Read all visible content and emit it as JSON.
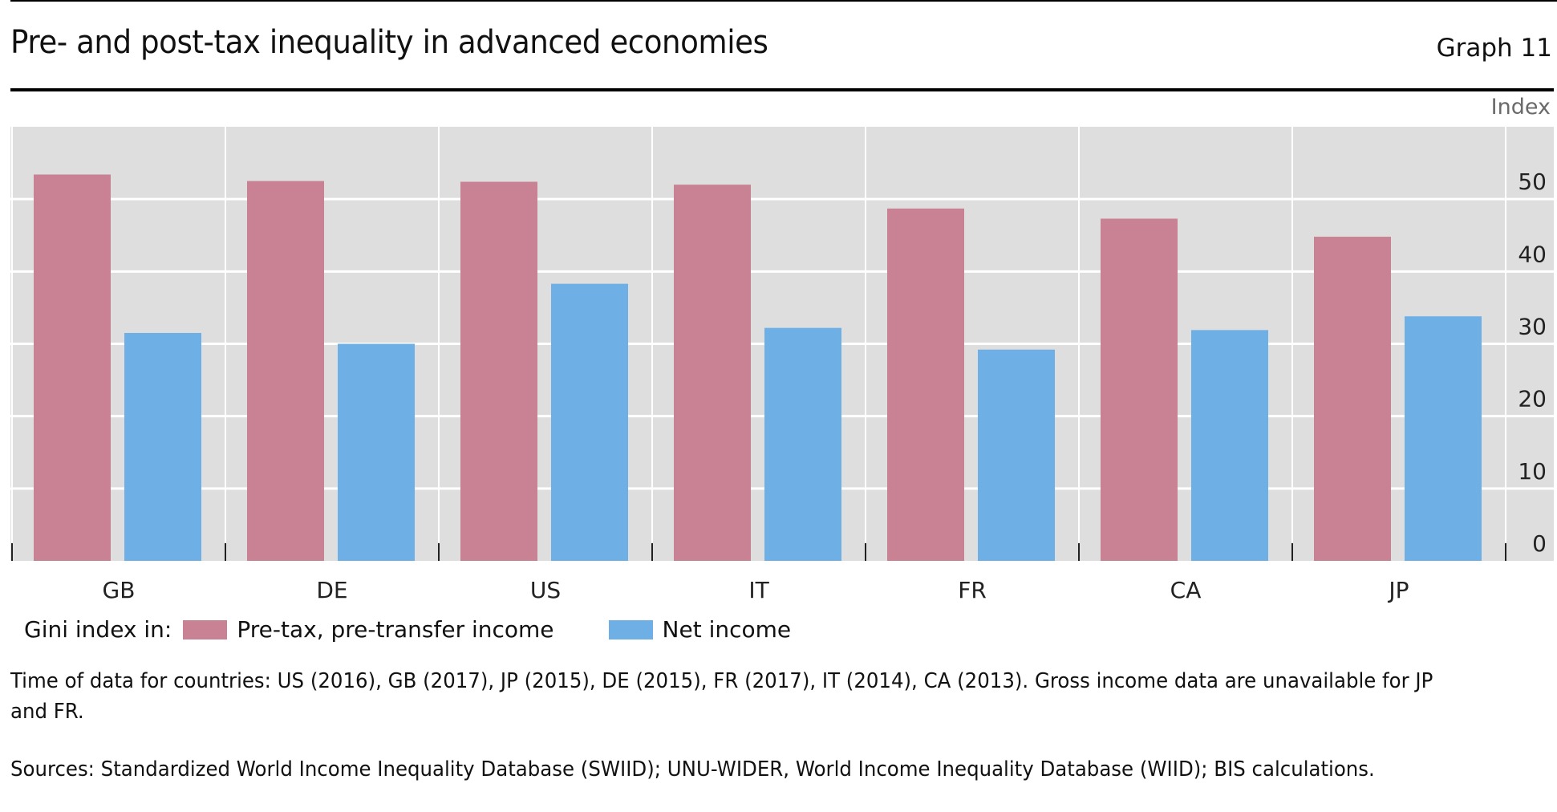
{
  "header": {
    "title": "Pre- and post-tax inequality in advanced economies",
    "graph_number": "Graph 11"
  },
  "legend": {
    "prefix": "Gini index in:",
    "items": [
      {
        "label": "Pre-tax, pre-transfer income",
        "color": "#C88293"
      },
      {
        "label": "Net income",
        "color": "#6EB0E6"
      }
    ]
  },
  "notes": {
    "time_of_data": "Time of data for countries: US (2016), GB (2017), JP (2015), DE (2015), FR (2017), IT (2014), CA (2013). Gross income data are unavailable for JP and FR.",
    "sources": "Sources: Standardized World Income Inequality Database (SWIID); UNU-WIDER, World Income Inequality Database (WIID); BIS calculations."
  },
  "chart_data": {
    "type": "bar",
    "title": "Pre- and post-tax inequality in advanced economies",
    "xlabel": "",
    "ylabel": "Index",
    "y_axis_position": "right",
    "categories": [
      "GB",
      "DE",
      "US",
      "IT",
      "FR",
      "CA",
      "JP"
    ],
    "series": [
      {
        "name": "Pre-tax, pre-transfer income",
        "color": "#C88293",
        "values": [
          53.4,
          52.5,
          52.4,
          52.0,
          48.7,
          47.3,
          44.8
        ]
      },
      {
        "name": "Net income",
        "color": "#6EB0E6",
        "values": [
          31.5,
          30.0,
          38.3,
          32.2,
          29.2,
          31.9,
          33.8
        ]
      }
    ],
    "yticks": [
      0,
      10,
      20,
      30,
      40,
      50
    ],
    "ylim": [
      0,
      60
    ],
    "grid": true,
    "background": "#DEDEDE",
    "legend_position": "bottom-left"
  }
}
